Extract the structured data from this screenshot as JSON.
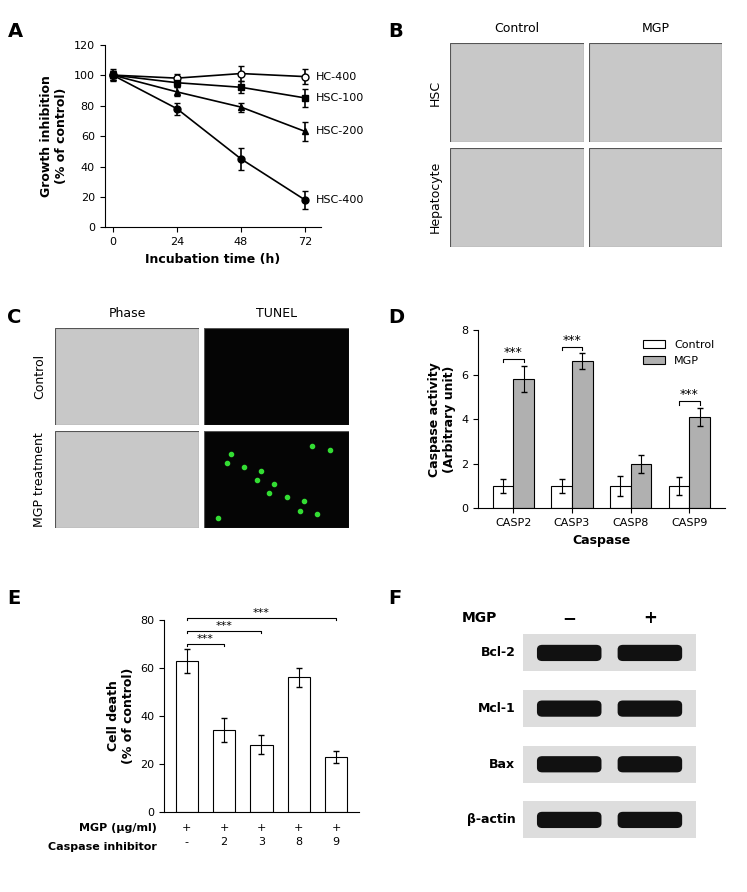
{
  "chart_data": [
    {
      "panel": "A",
      "type": "line",
      "x_label": "Incubation time (h)",
      "y_label": "Growth inhibition\n(% of control)",
      "x": [
        0,
        24,
        48,
        72
      ],
      "xlim": [
        -3,
        78
      ],
      "xticks": [
        0,
        24,
        48,
        72
      ],
      "ylim": [
        0,
        120
      ],
      "yticks": [
        0,
        20,
        40,
        60,
        80,
        100,
        120
      ],
      "series": [
        {
          "name": "HC-400",
          "color": "#000000",
          "marker": "circle_open",
          "values": [
            100,
            98,
            101,
            99
          ],
          "errors": [
            3,
            3,
            5,
            5
          ]
        },
        {
          "name": "HSC-100",
          "color": "#000000",
          "marker": "square",
          "values": [
            100,
            95,
            92,
            85
          ],
          "errors": [
            3,
            3,
            4,
            6
          ]
        },
        {
          "name": "HSC-200",
          "color": "#000000",
          "marker": "triangle",
          "values": [
            100,
            89,
            79,
            63
          ],
          "errors": [
            3,
            3,
            3,
            6
          ]
        },
        {
          "name": "HSC-400",
          "color": "#000000",
          "marker": "circle",
          "values": [
            100,
            78,
            45,
            18
          ],
          "errors": [
            4,
            4,
            7,
            6
          ]
        }
      ]
    },
    {
      "panel": "D",
      "type": "bar",
      "x_label": "Caspase",
      "y_label": "Caspase activity\n(Arbitrary unit)",
      "categories": [
        "CASP2",
        "CASP3",
        "CASP8",
        "CASP9"
      ],
      "ylim": [
        0,
        8
      ],
      "yticks": [
        0,
        2,
        4,
        6,
        8
      ],
      "legend": "upper right",
      "series": [
        {
          "name": "Control",
          "color": "#ffffff",
          "values": [
            1,
            1,
            1,
            1
          ],
          "errors": [
            0.3,
            0.3,
            0.45,
            0.4
          ]
        },
        {
          "name": "MGP",
          "color": "#b0b0b0",
          "values": [
            5.8,
            6.6,
            2.0,
            4.1
          ],
          "errors": [
            0.6,
            0.35,
            0.4,
            0.4
          ]
        }
      ],
      "annotations": [
        {
          "category": "CASP2",
          "text": "***"
        },
        {
          "category": "CASP3",
          "text": "***"
        },
        {
          "category": "CASP9",
          "text": "***"
        }
      ]
    },
    {
      "panel": "E",
      "type": "bar",
      "y_label": "Cell death\n(% of control)",
      "category_title": "Caspase inhibitor",
      "categories": [
        "-",
        "2",
        "3",
        "8",
        "9"
      ],
      "treatment_row": {
        "label": "MGP (μg/ml)",
        "texts": [
          "+",
          "+",
          "+",
          "+",
          "+"
        ]
      },
      "color": "#ffffff",
      "values": [
        63,
        34,
        28,
        56,
        23
      ],
      "errors": [
        5,
        5,
        4,
        4,
        2.5
      ],
      "ylim": [
        0,
        80
      ],
      "yticks": [
        0,
        20,
        40,
        60,
        80
      ],
      "comparisons": [
        {
          "from": "-",
          "to": "2",
          "text": "***"
        },
        {
          "from": "-",
          "to": "3",
          "text": "***"
        },
        {
          "from": "-",
          "to": "9",
          "text": "***"
        }
      ]
    }
  ],
  "images": [
    {
      "panel": "B",
      "columns": [
        "Control",
        "MGP"
      ],
      "rows": [
        "HSC",
        "Hepatocyte"
      ]
    },
    {
      "panel": "C",
      "columns": [
        "Phase",
        "TUNEL"
      ],
      "rows": [
        "Control",
        "MGP treatment"
      ]
    }
  ],
  "blot": {
    "panel": "F",
    "treatment": "MGP",
    "lanes": [
      "−",
      "+"
    ],
    "bands": [
      "Bcl-2",
      "Mcl-1",
      "Bax",
      "β-actin"
    ]
  }
}
